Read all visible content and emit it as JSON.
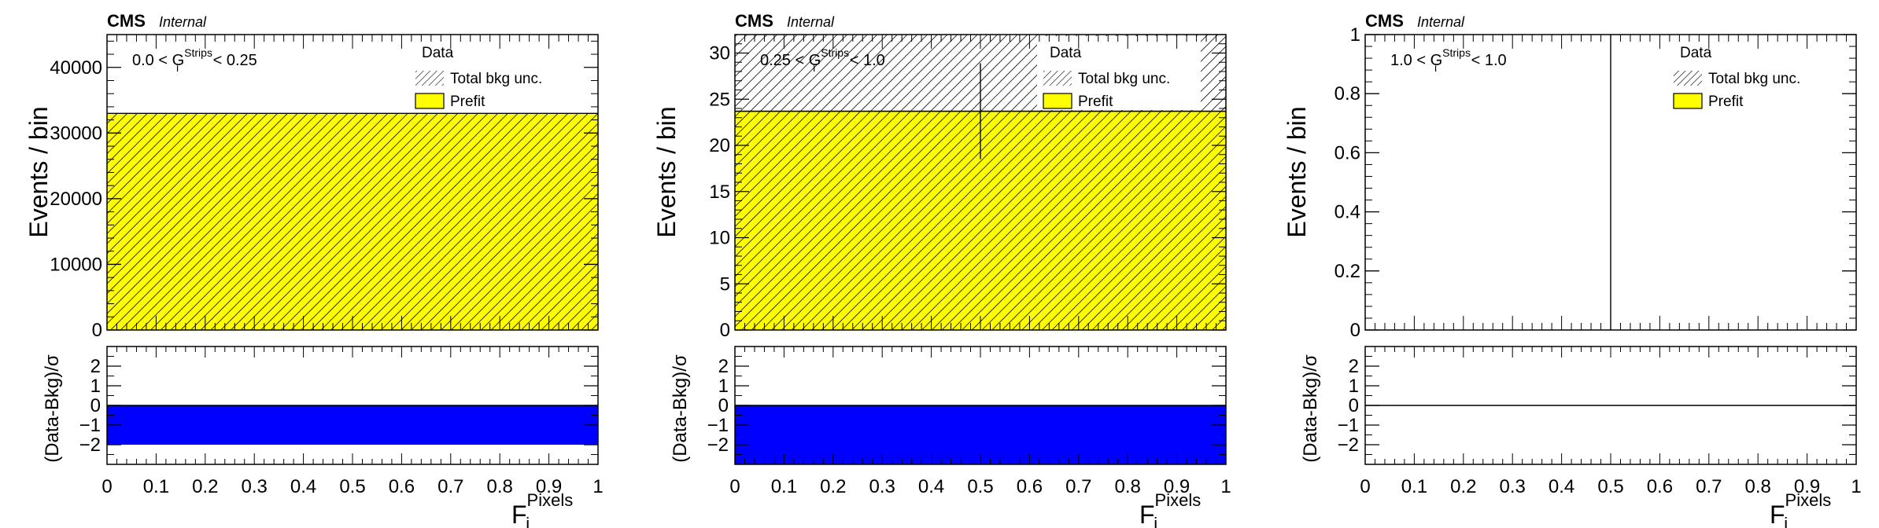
{
  "colors": {
    "prefit_fill": "#ffff00",
    "hatch": "#000000",
    "pull_fill": "#0000ff",
    "frame": "#000000",
    "background": "#ffffff"
  },
  "common": {
    "cms_label": "CMS",
    "internal_label": "Internal",
    "ylabel_top": "Events / bin",
    "ylabel_bottom": "(Data-Bkg)/σ",
    "xlabel_main": "F",
    "xlabel_sub": "i",
    "xlabel_sup": "Pixels",
    "legend": {
      "data": "Data",
      "total_bkg_unc": "Total bkg unc.",
      "prefit": "Prefit"
    },
    "x_ticks": [
      "0",
      "0.1",
      "0.2",
      "0.3",
      "0.4",
      "0.5",
      "0.6",
      "0.7",
      "0.8",
      "0.9",
      "1"
    ],
    "pull_ticks": [
      "2",
      "1",
      "0",
      "−1",
      "−2"
    ]
  },
  "chart_data": [
    {
      "type": "bar",
      "category_label": {
        "pre": "0.0 < G",
        "sub": "i",
        "sup": "Strips",
        "post": " < 0.25"
      },
      "x": [
        0.5
      ],
      "x_range": [
        0,
        1
      ],
      "ylim": [
        0,
        45000
      ],
      "y_ticks": [
        "0",
        "10000",
        "20000",
        "30000",
        "40000"
      ],
      "y_tick_values": [
        0,
        10000,
        20000,
        30000,
        40000
      ],
      "prefit": [
        33000
      ],
      "total_bkg_unc": [
        33000
      ],
      "data": [],
      "pull": [
        -2.0
      ],
      "pull_ylim": [
        -3,
        3
      ]
    },
    {
      "type": "bar",
      "category_label": {
        "pre": "0.25 < G",
        "sub": "i",
        "sup": "Strips",
        "post": " < 1.0"
      },
      "x": [
        0.5
      ],
      "x_range": [
        0,
        1
      ],
      "ylim": [
        0,
        32
      ],
      "y_ticks": [
        "0",
        "5",
        "10",
        "15",
        "20",
        "25",
        "30"
      ],
      "y_tick_values": [
        0,
        5,
        10,
        15,
        20,
        25,
        30
      ],
      "prefit": [
        23.7
      ],
      "total_bkg_unc": [
        32
      ],
      "data": [
        {
          "x": 0.5,
          "y": 23.7,
          "yerr_low": 5.2,
          "yerr_high": 5.2,
          "xerr": 0.5
        }
      ],
      "pull": [
        -3.0
      ],
      "pull_ylim": [
        -3,
        3
      ]
    },
    {
      "type": "bar",
      "category_label": {
        "pre": "1.0 < G",
        "sub": "i",
        "sup": "Strips",
        "post": " < 1.0"
      },
      "x": [
        0.5
      ],
      "x_range": [
        0,
        1
      ],
      "ylim": [
        0,
        1
      ],
      "y_ticks": [
        "0",
        "0.2",
        "0.4",
        "0.6",
        "0.8",
        "1"
      ],
      "y_tick_values": [
        0,
        0.2,
        0.4,
        0.6,
        0.8,
        1
      ],
      "prefit": [
        0
      ],
      "total_bkg_unc": [
        0
      ],
      "data": [
        {
          "x": 0.5,
          "y": 0,
          "yerr_low": 0,
          "yerr_high": 1.0,
          "xerr": 0
        }
      ],
      "pull": [
        0
      ],
      "pull_ylim": [
        -3,
        3
      ]
    }
  ]
}
